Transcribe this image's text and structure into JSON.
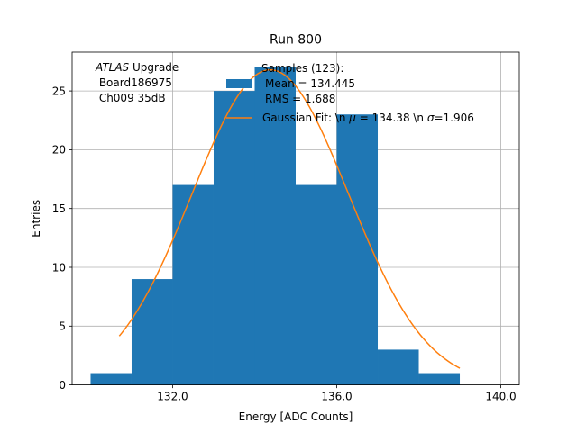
{
  "chart_data": {
    "type": "histogram",
    "title": "Run 800",
    "xlabel": "Energy [ADC Counts]",
    "ylabel": "Entries",
    "xlim": [
      129.55,
      140.45
    ],
    "ylim": [
      0,
      28.3
    ],
    "x_ticks": [
      132.0,
      136.0,
      140.0
    ],
    "x_tick_labels": [
      "132.0",
      "136.0",
      "140.0"
    ],
    "y_ticks": [
      0,
      5,
      10,
      15,
      20,
      25
    ],
    "y_tick_labels": [
      "0",
      "5",
      "10",
      "15",
      "20",
      "25"
    ],
    "grid": true,
    "bins": [
      {
        "left": 130,
        "right": 131,
        "count": 1
      },
      {
        "left": 131,
        "right": 132,
        "count": 9
      },
      {
        "left": 132,
        "right": 133,
        "count": 17
      },
      {
        "left": 133,
        "right": 134,
        "count": 25
      },
      {
        "left": 134,
        "right": 135,
        "count": 27
      },
      {
        "left": 135,
        "right": 136,
        "count": 17
      },
      {
        "left": 136,
        "right": 137,
        "count": 23
      },
      {
        "left": 137,
        "right": 138,
        "count": 3
      },
      {
        "left": 138,
        "right": 139,
        "count": 1
      }
    ],
    "fit": {
      "type": "gaussian",
      "amplitude": 26.8,
      "mu": 134.38,
      "sigma": 1.906,
      "x_start": 130.7,
      "x_end": 139.0
    },
    "colors": {
      "bars": "#1f77b4",
      "fit": "#ff7f0e",
      "grid": "#b0b0b0"
    },
    "annotation": {
      "line1_italic": "ATLAS",
      "line1_rest": " Upgrade",
      "line2": " Board186975",
      "line3": " Ch009 35dB"
    },
    "legend": {
      "placement": "top-right",
      "header": "Samples (123):",
      "hist_line1": "Mean = 134.445",
      "hist_line2": "RMS = 1.688",
      "fit_prefix": "Gaussian Fit: \\n ",
      "fit_mu_symbol": "μ",
      "fit_mid": " = 134.38 \\n ",
      "fit_sigma_symbol": "σ",
      "fit_suffix": "=1.906"
    }
  }
}
